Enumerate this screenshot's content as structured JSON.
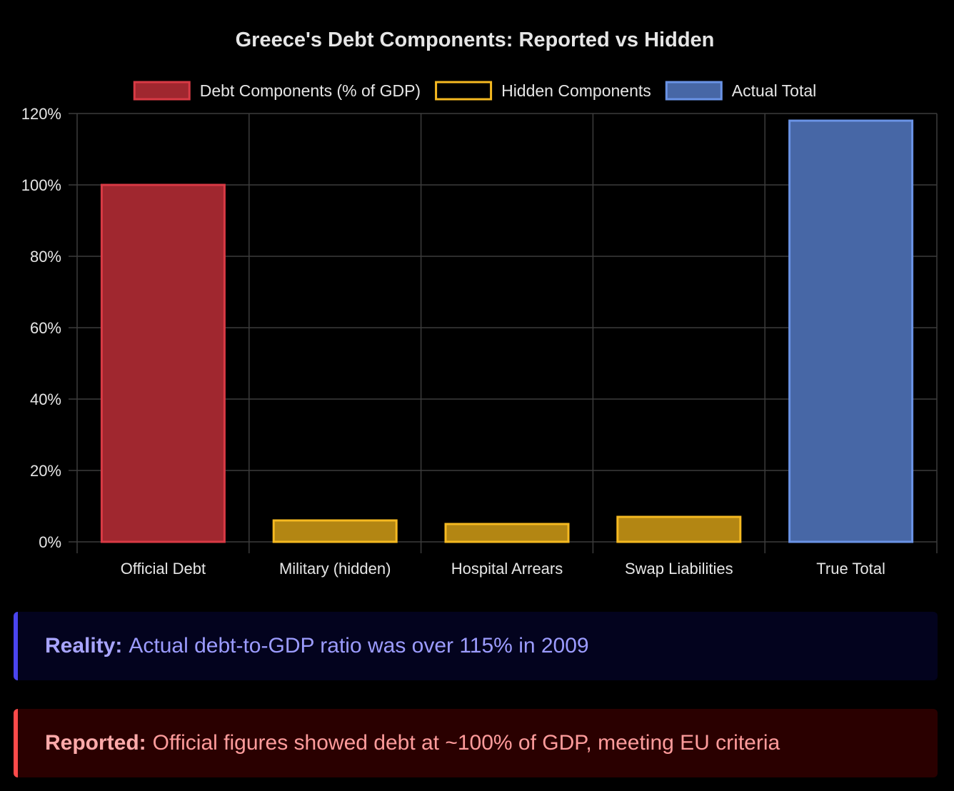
{
  "chart_data": {
    "type": "bar",
    "title": "Greece's Debt Components: Reported vs Hidden",
    "categories": [
      "Official Debt",
      "Military (hidden)",
      "Hospital Arrears",
      "Swap Liabilities",
      "True Total"
    ],
    "values": [
      100,
      6,
      5,
      7,
      118
    ],
    "bar_groups": [
      "reported",
      "hidden",
      "hidden",
      "hidden",
      "actual"
    ],
    "legend": [
      {
        "key": "reported",
        "label": "Debt Components (% of GDP)",
        "fill": "#a0272f",
        "stroke": "#d93a45"
      },
      {
        "key": "hidden",
        "label": "Hidden Components",
        "fill": "#b38613",
        "stroke": "#f5b921"
      },
      {
        "key": "actual",
        "label": "Actual Total",
        "fill": "#4767a6",
        "stroke": "#6a93e6"
      }
    ],
    "legend_placement": "top-center",
    "y_ticks": [
      "0%",
      "20%",
      "40%",
      "60%",
      "80%",
      "100%",
      "120%"
    ],
    "ylim": [
      0,
      120
    ],
    "y_step": 20,
    "xlabel": "",
    "ylabel": "",
    "grid": true
  },
  "callouts": {
    "reality": {
      "lead": "Reality:",
      "text": "Actual debt-to-GDP ratio was over 115% in 2009"
    },
    "reported": {
      "lead": "Reported:",
      "text": "Official figures showed debt at ~100% of GDP, meeting EU criteria"
    }
  }
}
